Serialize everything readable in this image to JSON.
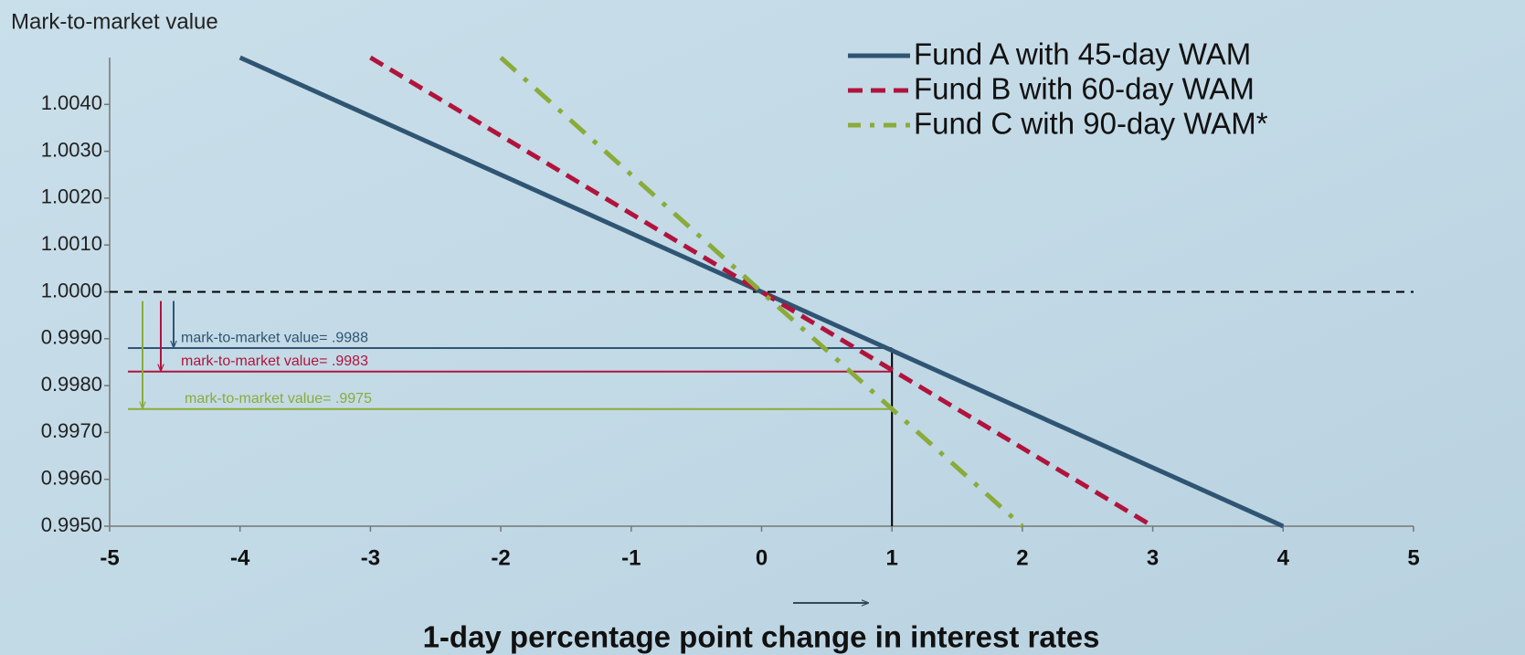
{
  "chart_data": {
    "type": "line",
    "y_axis_title": "Mark-to-market value",
    "x_axis_title": "1-day percentage point change in interest rates",
    "xlim": [
      -5,
      5
    ],
    "xticks": [
      -5,
      -4,
      -3,
      -2,
      -1,
      0,
      1,
      2,
      3,
      4,
      5
    ],
    "ylim": [
      0.995,
      1.005
    ],
    "yticks": [
      {
        "value": 0.995,
        "label": "0.9950"
      },
      {
        "value": 0.996,
        "label": "0.9960"
      },
      {
        "value": 0.997,
        "label": "0.9970"
      },
      {
        "value": 0.998,
        "label": "0.9980"
      },
      {
        "value": 0.999,
        "label": "0.9990"
      },
      {
        "value": 1.0,
        "label": "1.0000"
      },
      {
        "value": 1.001,
        "label": "1.0010"
      },
      {
        "value": 1.002,
        "label": "1.0020"
      },
      {
        "value": 1.003,
        "label": "1.0030"
      },
      {
        "value": 1.004,
        "label": "1.0040"
      }
    ],
    "legend": "upper right",
    "reference_line": 1.0,
    "marker_x": 1,
    "series": [
      {
        "name": "Fund A with 45-day WAM",
        "color": "#2f5573",
        "style": "solid",
        "x": [
          -4,
          4
        ],
        "values": [
          1.005,
          0.995
        ]
      },
      {
        "name": "Fund B with 60-day WAM",
        "color": "#b0143c",
        "style": "dashed",
        "x": [
          -3,
          3
        ],
        "values": [
          1.005,
          0.995
        ]
      },
      {
        "name": "Fund C with 90-day WAM*",
        "color": "#8aab3a",
        "style": "dashdot",
        "x": [
          -2,
          2
        ],
        "values": [
          1.005,
          0.995
        ]
      }
    ],
    "annotations": [
      {
        "text": "mark-to-market value= .9988",
        "value": 0.9988,
        "color": "#2f5573"
      },
      {
        "text": "mark-to-market value= .9983",
        "value": 0.9983,
        "color": "#b0143c"
      },
      {
        "text": "mark-to-market value= .9975",
        "value": 0.9975,
        "color": "#8aab3a"
      }
    ]
  }
}
